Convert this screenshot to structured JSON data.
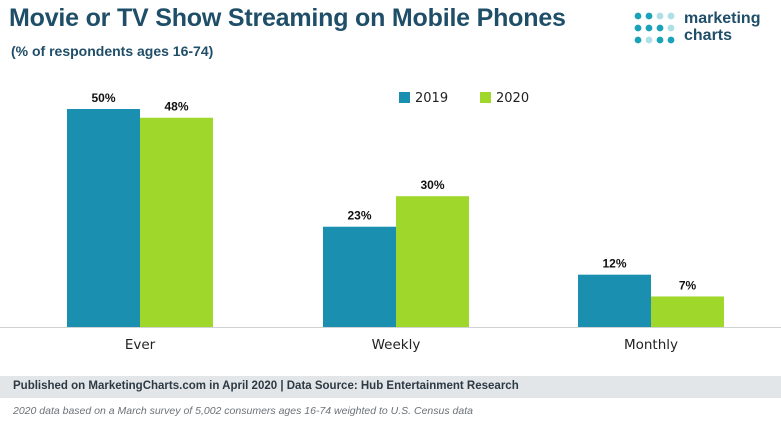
{
  "header": {
    "title": "Movie or TV Show Streaming on Mobile Phones",
    "subtitle": "(% of respondents ages 16-74)"
  },
  "brand": {
    "line1": "marketing",
    "line2": "charts",
    "dot_color": "#1aa3b8"
  },
  "chart_data": {
    "type": "bar",
    "title": "Movie or TV Show Streaming on Mobile Phones",
    "subtitle": "(% of respondents ages 16-74)",
    "categories": [
      "Ever",
      "Weekly",
      "Monthly"
    ],
    "series": [
      {
        "name": "2019",
        "values": [
          50,
          23,
          12
        ],
        "labels": [
          "50%",
          "23%",
          "12%"
        ],
        "color": "#1b8fb0"
      },
      {
        "name": "2020",
        "values": [
          48,
          30,
          7
        ],
        "labels": [
          "48%",
          "30%",
          "7%"
        ],
        "color": "#9fd72a"
      }
    ],
    "ylim": [
      0,
      50
    ],
    "grid": false,
    "legend": "top-right"
  },
  "footer": {
    "source": "Published on MarketingCharts.com in April 2020 | Data Source: Hub Entertainment Research",
    "note": "2020 data based on a March survey of 5,002 consumers ages 16-74 weighted to U.S. Census data"
  }
}
